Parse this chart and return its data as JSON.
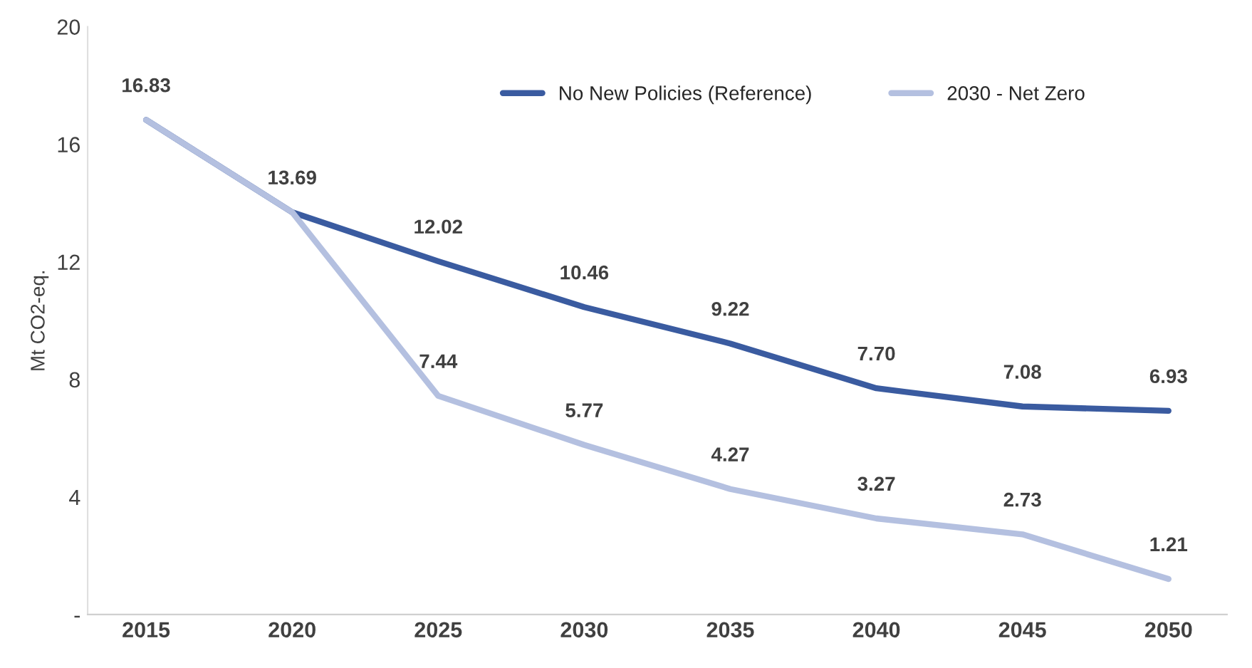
{
  "chart_data": {
    "type": "line",
    "ylabel": "Mt CO2-eq.",
    "categories": [
      "2015",
      "2020",
      "2025",
      "2030",
      "2035",
      "2040",
      "2045",
      "2050"
    ],
    "series": [
      {
        "name": "No New Policies (Reference)",
        "color": "#3a5ba0",
        "values": [
          16.83,
          13.69,
          12.02,
          10.46,
          9.22,
          7.7,
          7.08,
          6.93
        ],
        "value_labels": [
          "16.83",
          "13.69",
          "12.02",
          "10.46",
          "9.22",
          "7.70",
          "7.08",
          "6.93"
        ]
      },
      {
        "name": "2030 - Net Zero",
        "color": "#b4c0e0",
        "values": [
          16.83,
          13.69,
          7.44,
          5.77,
          4.27,
          3.27,
          2.73,
          1.21
        ],
        "value_labels": [
          null,
          null,
          "7.44",
          "5.77",
          "4.27",
          "3.27",
          "2.73",
          "1.21"
        ]
      }
    ],
    "ylim": [
      0,
      20
    ],
    "yticks": [
      {
        "value": 0,
        "label": "-"
      },
      4,
      8,
      12,
      16,
      20
    ],
    "grid": false,
    "legend": "top",
    "marker": "none",
    "line_style": "solid"
  }
}
